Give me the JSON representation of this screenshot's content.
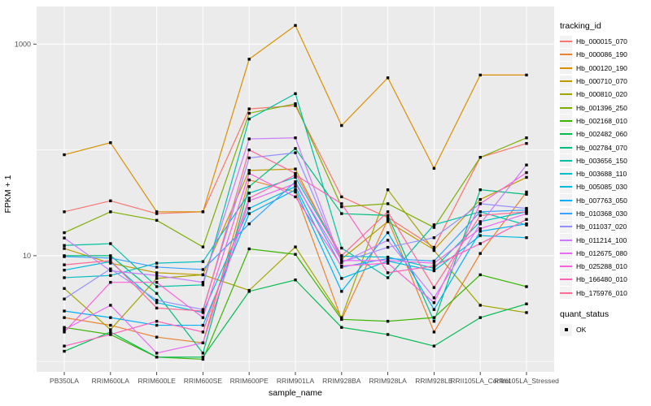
{
  "figure": {
    "background": "#FFFFFF",
    "panel_background": "#EBEBEB",
    "gridline_color": "#FFFFFF",
    "tick_text_color": "#4D4D4D",
    "point_color": "#000000"
  },
  "axes": {
    "y": {
      "title": "FPKM + 1",
      "tick_labels": [
        "1000",
        "10"
      ],
      "tick_values": [
        1000,
        10
      ]
    },
    "x": {
      "title": "sample_name"
    }
  },
  "legend": {
    "tracking_title": "tracking_id",
    "quant_title": "quant_status",
    "quant_ok_label": "OK"
  },
  "chart_data": {
    "type": "line",
    "yscale": "log10",
    "ylim": [
      1,
      2200
    ],
    "grid": true,
    "legend_position": "right",
    "title": "",
    "xlabel": "sample_name",
    "ylabel": "FPKM + 1",
    "yticks_labeled": [
      10,
      1000
    ],
    "gridlines_horizontal": [
      1,
      10,
      100,
      1000
    ],
    "quant_status": "OK",
    "x": [
      "PB350LA",
      "RRIM600LA",
      "RRIM600LE",
      "RRIM600SE",
      "RRIM600PE",
      "RRIM901LA",
      "RRIM928BA",
      "RRIM928LA",
      "RRIM928LE",
      "RRII105LA_Control",
      "RRII105LA_Stressed"
    ],
    "series": [
      {
        "name": "Hb_000015_070",
        "color": "#F8766D",
        "values": [
          26,
          33,
          25,
          26,
          244,
          262,
          36,
          23,
          12,
          85,
          115
        ]
      },
      {
        "name": "Hb_000086_190",
        "color": "#EA8331",
        "values": [
          2.6,
          2.2,
          1.7,
          1.5,
          52,
          40,
          2.5,
          22,
          1.9,
          10.5,
          40
        ]
      },
      {
        "name": "Hb_000120_190",
        "color": "#D89000",
        "values": [
          90,
          117,
          26,
          26,
          720,
          1500,
          170,
          480,
          67,
          510,
          510
        ]
      },
      {
        "name": "Hb_000710_070",
        "color": "#C09B00",
        "values": [
          11.7,
          8.5,
          6.9,
          6.6,
          64,
          66,
          9.3,
          21,
          11.4,
          34,
          55
        ]
      },
      {
        "name": "Hb_000810_020",
        "color": "#A3A500",
        "values": [
          4.9,
          2.0,
          6.1,
          6.6,
          4.7,
          12.1,
          2.6,
          42,
          11.2,
          3.4,
          2.9
        ]
      },
      {
        "name": "Hb_001396_250",
        "color": "#7CAE00",
        "values": [
          16.5,
          26,
          21.6,
          12.1,
          222,
          273,
          29,
          31,
          18.5,
          85,
          130
        ]
      },
      {
        "name": "Hb_002168_010",
        "color": "#39B600",
        "values": [
          2.1,
          1.8,
          1.1,
          1.05,
          11.6,
          10.3,
          2.5,
          2.4,
          2.6,
          6.6,
          5.1
        ]
      },
      {
        "name": "Hb_002482_060",
        "color": "#00BB4E",
        "values": [
          1.25,
          1.9,
          1.1,
          1.1,
          4.6,
          5.9,
          2.1,
          1.8,
          1.4,
          2.6,
          3.5
        ]
      },
      {
        "name": "Hb_002784_070",
        "color": "#00BF7D",
        "values": [
          10,
          10,
          4.4,
          1.2,
          45,
          103,
          25,
          24,
          2.4,
          42,
          38
        ]
      },
      {
        "name": "Hb_003656_150",
        "color": "#00C1A3",
        "values": [
          12.5,
          13,
          5.1,
          5.3,
          196,
          340,
          11.8,
          6.2,
          19.6,
          26,
          19.5
        ]
      },
      {
        "name": "Hb_003688_110",
        "color": "#00BFC4",
        "values": [
          6.2,
          6.5,
          8.5,
          8.8,
          39,
          55,
          9.9,
          9.7,
          7.6,
          21,
          26
        ]
      },
      {
        "name": "Hb_005085_030",
        "color": "#00BAE0",
        "values": [
          7.3,
          8.8,
          3.6,
          2.9,
          28,
          45,
          6.1,
          8.9,
          7.2,
          15.5,
          14.8
        ]
      },
      {
        "name": "Hb_007763_050",
        "color": "#00B0F6",
        "values": [
          3.0,
          2.6,
          2.2,
          2.2,
          25,
          42,
          4.6,
          16.5,
          3.1,
          17,
          20
        ]
      },
      {
        "name": "Hb_010368_030",
        "color": "#35A2FF",
        "values": [
          9.8,
          9.5,
          7.8,
          7.4,
          20,
          50,
          7.8,
          9.4,
          8.9,
          26,
          27
        ]
      },
      {
        "name": "Hb_011037_020",
        "color": "#9590FF",
        "values": [
          3.9,
          7.5,
          3.8,
          3.1,
          84,
          94,
          8.7,
          12,
          14.8,
          31,
          28
        ]
      },
      {
        "name": "Hb_011214_100",
        "color": "#C77CFF",
        "values": [
          14.7,
          7.2,
          6.5,
          5.6,
          127,
          130,
          8.6,
          14,
          4.0,
          20,
          72
        ]
      },
      {
        "name": "Hb_012675_080",
        "color": "#E76BF3",
        "values": [
          2.0,
          3.4,
          1.2,
          1.5,
          33,
          48,
          9.0,
          9.0,
          8.5,
          18,
          25
        ]
      },
      {
        "name": "Hb_025288_010",
        "color": "#FA62DB",
        "values": [
          1.9,
          5.6,
          5.6,
          2.6,
          60,
          36,
          8.0,
          8.5,
          3.6,
          31,
          61
        ]
      },
      {
        "name": "Hb_166480_010",
        "color": "#FF62BC",
        "values": [
          1.4,
          1.8,
          2.4,
          1.9,
          35,
          58,
          31,
          6.9,
          8.0,
          13,
          22
        ]
      },
      {
        "name": "Hb_175976_010",
        "color": "#FF6A98",
        "values": [
          8.2,
          9.0,
          3.2,
          3.0,
          100,
          60,
          10,
          26,
          5.0,
          24,
          26
        ]
      }
    ]
  }
}
